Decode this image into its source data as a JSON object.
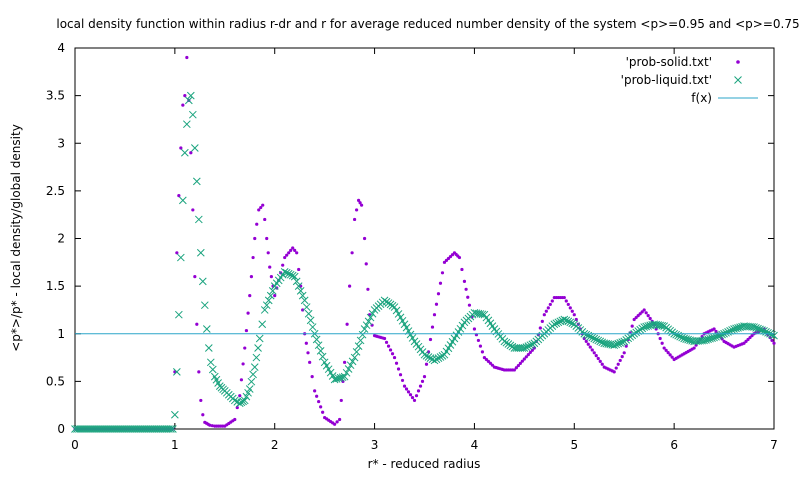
{
  "chart_data": {
    "type": "scatter",
    "title": "local density function within radius r-dr and r for average reduced number density of the system <p>=0.95 and <p>=0.75",
    "xlabel": "r* - reduced radius",
    "ylabel": "<p*>/p* - local density/global density",
    "xlim": [
      0,
      7
    ],
    "ylim": [
      0,
      4
    ],
    "xticks": [
      "0",
      "1",
      "2",
      "3",
      "4",
      "5",
      "6",
      "7"
    ],
    "yticks": [
      "0",
      "0.5",
      "1",
      "1.5",
      "2",
      "2.5",
      "3",
      "3.5",
      "4"
    ],
    "grid": false,
    "legend_position": "top-right",
    "series": [
      {
        "name": "'prob-solid.txt'",
        "marker": "dot",
        "color": "#9400d3",
        "x": [
          0.0,
          0.2,
          0.4,
          0.6,
          0.8,
          0.98,
          1.0,
          1.02,
          1.04,
          1.06,
          1.08,
          1.1,
          1.12,
          1.14,
          1.16,
          1.18,
          1.2,
          1.22,
          1.24,
          1.26,
          1.28,
          1.3,
          1.35,
          1.4,
          1.5,
          1.6,
          1.65,
          1.7,
          1.75,
          1.8,
          1.84,
          1.88,
          1.9,
          1.92,
          1.95,
          2.0,
          2.1,
          2.18,
          2.22,
          2.26,
          2.3,
          2.35,
          2.4,
          2.5,
          2.6,
          2.65,
          2.7,
          2.75,
          2.8,
          2.84,
          2.87,
          2.9,
          2.95,
          3.0,
          3.1,
          3.2,
          3.3,
          3.4,
          3.5,
          3.6,
          3.7,
          3.8,
          3.85,
          3.9,
          3.95,
          4.0,
          4.1,
          4.2,
          4.3,
          4.4,
          4.6,
          4.7,
          4.8,
          4.9,
          5.0,
          5.1,
          5.2,
          5.3,
          5.4,
          5.5,
          5.6,
          5.7,
          5.8,
          5.9,
          6.0,
          6.2,
          6.3,
          6.4,
          6.5,
          6.6,
          6.7,
          6.8,
          6.9,
          7.0
        ],
        "y": [
          0.0,
          0.0,
          0.0,
          0.0,
          0.0,
          0.0,
          0.6,
          1.85,
          2.45,
          2.95,
          3.4,
          3.5,
          3.9,
          3.45,
          2.9,
          2.3,
          1.6,
          1.1,
          0.6,
          0.3,
          0.15,
          0.07,
          0.04,
          0.03,
          0.03,
          0.1,
          0.35,
          0.85,
          1.4,
          2.0,
          2.3,
          2.35,
          2.2,
          2.0,
          1.7,
          1.4,
          1.8,
          1.9,
          1.85,
          1.5,
          1.0,
          0.7,
          0.4,
          0.12,
          0.05,
          0.1,
          0.7,
          1.5,
          2.2,
          2.4,
          2.35,
          2.0,
          1.2,
          0.98,
          0.95,
          0.75,
          0.45,
          0.3,
          0.55,
          1.2,
          1.75,
          1.85,
          1.8,
          1.55,
          1.3,
          1.05,
          0.75,
          0.65,
          0.62,
          0.62,
          0.85,
          1.2,
          1.38,
          1.38,
          1.2,
          0.95,
          0.8,
          0.65,
          0.6,
          0.8,
          1.15,
          1.25,
          1.1,
          0.85,
          0.73,
          0.85,
          1.0,
          1.05,
          0.92,
          0.86,
          0.9,
          1.0,
          1.05,
          0.9
        ]
      },
      {
        "name": "'prob-liquid.txt'",
        "marker": "x",
        "color": "#1aa37e",
        "x": [
          0.0,
          0.2,
          0.4,
          0.6,
          0.8,
          0.98,
          1.0,
          1.02,
          1.04,
          1.06,
          1.08,
          1.1,
          1.12,
          1.14,
          1.16,
          1.18,
          1.2,
          1.22,
          1.24,
          1.26,
          1.28,
          1.3,
          1.32,
          1.34,
          1.36,
          1.4,
          1.45,
          1.5,
          1.6,
          1.65,
          1.7,
          1.75,
          1.8,
          1.85,
          1.9,
          2.0,
          2.1,
          2.2,
          2.3,
          2.4,
          2.5,
          2.6,
          2.7,
          2.8,
          2.9,
          3.0,
          3.1,
          3.2,
          3.3,
          3.4,
          3.5,
          3.6,
          3.7,
          3.8,
          3.9,
          4.0,
          4.1,
          4.2,
          4.3,
          4.4,
          4.5,
          4.6,
          4.7,
          4.8,
          4.9,
          5.0,
          5.1,
          5.2,
          5.3,
          5.4,
          5.5,
          5.6,
          5.7,
          5.8,
          5.9,
          6.0,
          6.1,
          6.2,
          6.3,
          6.4,
          6.5,
          6.6,
          6.7,
          6.8,
          6.9,
          7.0
        ],
        "y": [
          0.0,
          0.0,
          0.0,
          0.0,
          0.0,
          0.0,
          0.15,
          0.6,
          1.2,
          1.8,
          2.4,
          2.9,
          3.2,
          3.45,
          3.5,
          3.3,
          2.95,
          2.6,
          2.2,
          1.85,
          1.55,
          1.3,
          1.05,
          0.85,
          0.7,
          0.55,
          0.45,
          0.4,
          0.3,
          0.27,
          0.3,
          0.42,
          0.65,
          0.95,
          1.25,
          1.5,
          1.65,
          1.6,
          1.35,
          1.0,
          0.7,
          0.52,
          0.55,
          0.75,
          1.05,
          1.25,
          1.35,
          1.28,
          1.1,
          0.92,
          0.78,
          0.72,
          0.78,
          0.95,
          1.12,
          1.22,
          1.2,
          1.05,
          0.92,
          0.85,
          0.85,
          0.9,
          1.0,
          1.1,
          1.15,
          1.1,
          1.0,
          0.95,
          0.9,
          0.88,
          0.92,
          1.0,
          1.07,
          1.1,
          1.08,
          1.0,
          0.95,
          0.92,
          0.93,
          0.96,
          1.0,
          1.05,
          1.08,
          1.07,
          1.03,
          0.98
        ]
      },
      {
        "name": "f(x)",
        "marker": "line",
        "color": "#2ba6c9",
        "x": [
          0,
          7
        ],
        "y": [
          1,
          1
        ]
      }
    ]
  }
}
